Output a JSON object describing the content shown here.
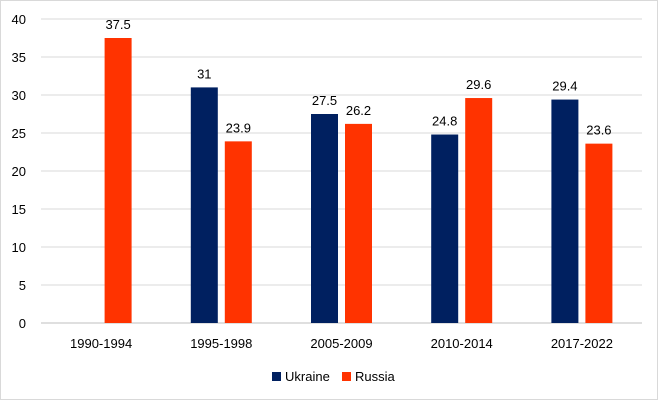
{
  "chart_data": {
    "type": "bar",
    "categories": [
      "1990-1994",
      "1995-1998",
      "2005-2009",
      "2010-2014",
      "2017-2022"
    ],
    "series": [
      {
        "name": "Ukraine",
        "color": "#002060",
        "values": [
          null,
          31,
          27.5,
          24.8,
          29.4
        ],
        "labels": [
          "",
          "31",
          "27.5",
          "24.8",
          "29.4"
        ]
      },
      {
        "name": "Russia",
        "color": "#FF3300",
        "values": [
          37.5,
          23.9,
          26.2,
          29.6,
          23.6
        ],
        "labels": [
          "37.5",
          "23.9",
          "26.2",
          "29.6",
          "23.6"
        ]
      }
    ],
    "ylim": [
      0,
      40
    ],
    "yticks": [
      0,
      5,
      10,
      15,
      20,
      25,
      30,
      35,
      40
    ],
    "grid": true,
    "legend": "bottom",
    "title": "",
    "xlabel": "",
    "ylabel": ""
  }
}
